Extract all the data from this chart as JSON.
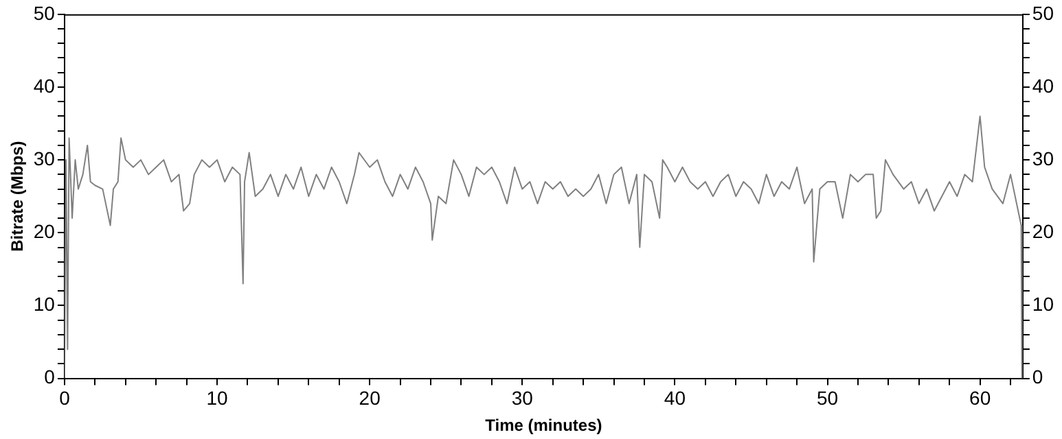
{
  "chart_data": {
    "type": "line",
    "xlabel": "Time (minutes)",
    "ylabel": "Bitrate (Mbps)",
    "xlim": [
      0,
      62.8
    ],
    "xticks": [
      0,
      {
        "value": 2,
        "label": null
      },
      {
        "value": 4,
        "label": null
      },
      {
        "value": 6,
        "label": null
      },
      {
        "value": 8,
        "label": null
      },
      10,
      {
        "value": 12,
        "label": null
      },
      {
        "value": 14,
        "label": null
      },
      {
        "value": 16,
        "label": null
      },
      {
        "value": 18,
        "label": null
      },
      20,
      {
        "value": 22,
        "label": null
      },
      {
        "value": 24,
        "label": null
      },
      {
        "value": 26,
        "label": null
      },
      {
        "value": 28,
        "label": null
      },
      30,
      {
        "value": 32,
        "label": null
      },
      {
        "value": 34,
        "label": null
      },
      {
        "value": 36,
        "label": null
      },
      {
        "value": 38,
        "label": null
      },
      40,
      {
        "value": 42,
        "label": null
      },
      {
        "value": 44,
        "label": null
      },
      {
        "value": 46,
        "label": null
      },
      {
        "value": 48,
        "label": null
      },
      50,
      {
        "value": 52,
        "label": null
      },
      {
        "value": 54,
        "label": null
      },
      {
        "value": 56,
        "label": null
      },
      {
        "value": 58,
        "label": null
      },
      60,
      {
        "value": 62,
        "label": null
      }
    ],
    "ylim": [
      0,
      50
    ],
    "yticks": [
      0,
      {
        "value": 2,
        "label": null
      },
      {
        "value": 4,
        "label": null
      },
      {
        "value": 6,
        "label": null
      },
      {
        "value": 8,
        "label": null
      },
      10,
      {
        "value": 12,
        "label": null
      },
      {
        "value": 14,
        "label": null
      },
      {
        "value": 16,
        "label": null
      },
      {
        "value": 18,
        "label": null
      },
      20,
      {
        "value": 22,
        "label": null
      },
      {
        "value": 24,
        "label": null
      },
      {
        "value": 26,
        "label": null
      },
      {
        "value": 28,
        "label": null
      },
      30,
      {
        "value": 32,
        "label": null
      },
      {
        "value": 34,
        "label": null
      },
      {
        "value": 36,
        "label": null
      },
      {
        "value": 38,
        "label": null
      },
      40,
      {
        "value": 42,
        "label": null
      },
      {
        "value": 44,
        "label": null
      },
      {
        "value": 46,
        "label": null
      },
      {
        "value": 48,
        "label": null
      },
      50
    ],
    "y2lim": [
      0,
      50
    ],
    "y2ticks": [
      0,
      {
        "value": 2,
        "label": null
      },
      {
        "value": 4,
        "label": null
      },
      {
        "value": 6,
        "label": null
      },
      {
        "value": 8,
        "label": null
      },
      10,
      {
        "value": 12,
        "label": null
      },
      {
        "value": 14,
        "label": null
      },
      {
        "value": 16,
        "label": null
      },
      {
        "value": 18,
        "label": null
      },
      20,
      {
        "value": 22,
        "label": null
      },
      {
        "value": 24,
        "label": null
      },
      {
        "value": 26,
        "label": null
      },
      {
        "value": 28,
        "label": null
      },
      30,
      {
        "value": 32,
        "label": null
      },
      {
        "value": 34,
        "label": null
      },
      {
        "value": 36,
        "label": null
      },
      {
        "value": 38,
        "label": null
      },
      40,
      {
        "value": 42,
        "label": null
      },
      {
        "value": 44,
        "label": null
      },
      {
        "value": 46,
        "label": null
      },
      {
        "value": 48,
        "label": null
      },
      50
    ],
    "grid": false,
    "legend": false,
    "marker": "none",
    "line_style": "solid",
    "series": [
      {
        "color": "#808080",
        "x": [
          0,
          0.1,
          0.2,
          0.3,
          0.5,
          0.7,
          0.9,
          1.2,
          1.5,
          1.7,
          2,
          2.5,
          3,
          3.2,
          3.5,
          3.7,
          4,
          4.5,
          5,
          5.5,
          6,
          6.5,
          7,
          7.5,
          7.8,
          8.2,
          8.5,
          9,
          9.5,
          10,
          10.5,
          11,
          11.5,
          11.7,
          11.8,
          12.1,
          12.5,
          13,
          13.5,
          14,
          14.5,
          15,
          15.5,
          16,
          16.5,
          17,
          17.5,
          18,
          18.5,
          19,
          19.3,
          20,
          20.5,
          21,
          21.5,
          22,
          22.5,
          23,
          23.5,
          24,
          24.1,
          24.5,
          25,
          25.5,
          26,
          26.5,
          27,
          27.5,
          28,
          28.5,
          29,
          29.5,
          30,
          30.5,
          31,
          31.5,
          32,
          32.5,
          33,
          33.5,
          34,
          34.5,
          35,
          35.5,
          36,
          36.5,
          37,
          37.5,
          37.7,
          38,
          38.5,
          39,
          39.2,
          39.5,
          40,
          40.5,
          41,
          41.5,
          42,
          42.5,
          43,
          43.5,
          44,
          44.5,
          45,
          45.5,
          46,
          46.5,
          47,
          47.5,
          48,
          48.5,
          49,
          49.1,
          49.5,
          50,
          50.5,
          51,
          51.5,
          52,
          52.5,
          53,
          53.2,
          53.5,
          53.8,
          54.3,
          55,
          55.5,
          56,
          56.5,
          57,
          57.5,
          58,
          58.5,
          59,
          59.5,
          60,
          60.3,
          60.8,
          61.5,
          62,
          62.5,
          62.7,
          62.75
        ],
        "values": [
          0,
          30,
          4,
          33,
          22,
          30,
          26,
          28,
          32,
          27,
          26.5,
          26,
          21,
          26,
          27,
          33,
          30,
          29,
          30,
          28,
          29,
          30,
          27,
          28,
          23,
          24,
          28,
          30,
          29,
          30,
          27,
          29,
          28,
          13,
          27,
          31,
          25,
          26,
          28,
          25,
          28,
          26,
          29,
          25,
          28,
          26,
          29,
          27,
          24,
          28,
          31,
          29,
          30,
          27,
          25,
          28,
          26,
          29,
          27,
          24,
          19,
          25,
          24,
          30,
          28,
          25,
          29,
          28,
          29,
          27,
          24,
          29,
          26,
          27,
          24,
          27,
          26,
          27,
          25,
          26,
          25,
          26,
          28,
          24,
          28,
          29,
          24,
          28,
          18,
          28,
          27,
          22,
          30,
          29,
          27,
          29,
          27,
          26,
          27,
          25,
          27,
          28,
          25,
          27,
          26,
          24,
          28,
          25,
          27,
          26,
          29,
          24,
          26,
          16,
          26,
          27,
          27,
          22,
          28,
          27,
          28,
          28,
          22,
          23,
          30,
          28,
          26,
          27,
          24,
          26,
          23,
          25,
          27,
          25,
          28,
          27,
          36,
          29,
          26,
          24,
          28,
          23,
          21,
          0
        ]
      }
    ]
  }
}
